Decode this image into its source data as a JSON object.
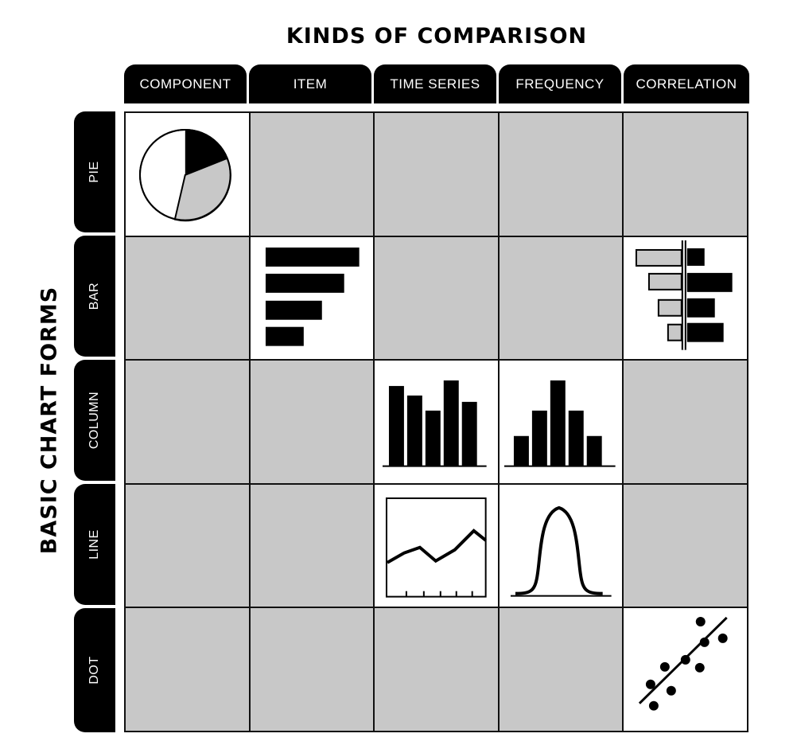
{
  "title": "KINDS OF COMPARISON",
  "side_title": "BASIC CHART FORMS",
  "columns": [
    "COMPONENT",
    "ITEM",
    "TIME SERIES",
    "FREQUENCY",
    "CORRELATION"
  ],
  "rows": [
    "PIE",
    "BAR",
    "COLUMN",
    "LINE",
    "DOT"
  ],
  "cells": [
    [
      "pie",
      "",
      "",
      "",
      ""
    ],
    [
      "",
      "bar",
      "",
      "",
      "deviation-bar"
    ],
    [
      "",
      "",
      "column",
      "histogram",
      ""
    ],
    [
      "",
      "",
      "line",
      "bell-curve",
      ""
    ],
    [
      "",
      "",
      "",
      "",
      "scatter"
    ]
  ],
  "colors": {
    "ink": "#000000",
    "inactive": "#c8c8c8",
    "active": "#ffffff",
    "light_fill": "#c8c8c8"
  }
}
